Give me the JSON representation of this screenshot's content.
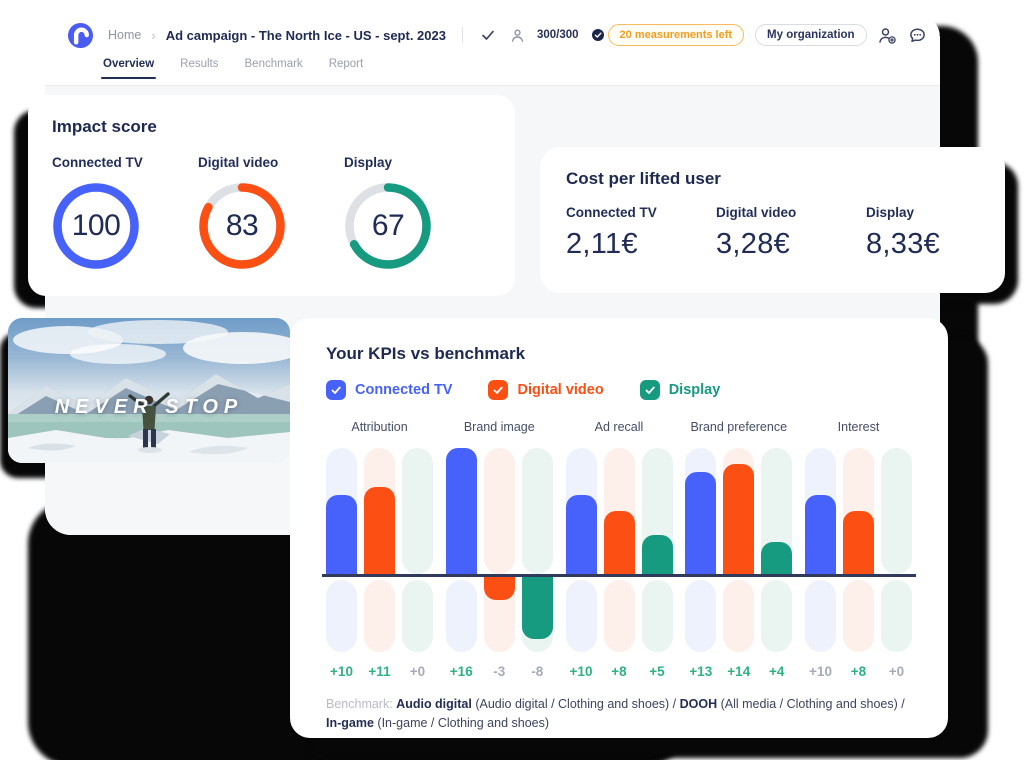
{
  "header": {
    "breadcrumb": {
      "home": "Home",
      "separator": "›",
      "title": "Ad campaign - The North Ice - US - sept. 2023"
    },
    "respondents": "300/300",
    "measurements_badge": "20 measurements left",
    "organization_button": "My organization",
    "icons": [
      "check-icon",
      "person-icon",
      "verified-badge-icon",
      "add-user-icon",
      "chat-icon",
      "eye-icon",
      "download-icon",
      "bell-icon",
      "help-icon",
      "account-icon"
    ]
  },
  "tabs": [
    {
      "label": "Overview",
      "active": true
    },
    {
      "label": "Results",
      "active": false
    },
    {
      "label": "Benchmark",
      "active": false
    },
    {
      "label": "Report",
      "active": false
    }
  ],
  "impact": {
    "title": "Impact score",
    "gauges": [
      {
        "label": "Connected TV",
        "value": 100,
        "color": "#4761fb"
      },
      {
        "label": "Digital video",
        "value": 83,
        "color": "#fb4f14"
      },
      {
        "label": "Display",
        "value": 67,
        "color": "#169a80"
      }
    ],
    "track_color": "#dde0e5"
  },
  "cost": {
    "title": "Cost per lifted user",
    "items": [
      {
        "label": "Connected TV",
        "value": "2,11€"
      },
      {
        "label": "Digital video",
        "value": "3,28€"
      },
      {
        "label": "Display",
        "value": "8,33€"
      }
    ]
  },
  "hero": {
    "caption": "NEVER STOP"
  },
  "kpi": {
    "title": "Your KPIs vs benchmark",
    "legend": [
      {
        "label": "Connected TV",
        "color": "#4761fb"
      },
      {
        "label": "Digital video",
        "color": "#fb4f14"
      },
      {
        "label": "Display",
        "color": "#169a80"
      }
    ],
    "benchmark": {
      "prefix": "Benchmark:",
      "segments": [
        {
          "text": "Audio digital",
          "bold": true
        },
        {
          "text": " (Audio digital / Clothing and shoes) /  ",
          "bold": false
        },
        {
          "text": "DOOH",
          "bold": true
        },
        {
          "text": " (All media / Clothing and shoes) /",
          "bold": false
        },
        {
          "text": "In-game",
          "bold": true,
          "break_before": true
        },
        {
          "text": " (In-game / Clothing and shoes)",
          "bold": false
        }
      ]
    }
  },
  "chart_data": {
    "type": "bar",
    "title": "Your KPIs vs benchmark",
    "categories": [
      "Attribution",
      "Brand image",
      "Ad recall",
      "Brand preference",
      "Interest"
    ],
    "series": [
      {
        "name": "Connected TV",
        "color": "#4761fb",
        "track_color": "#eef2fc",
        "values": [
          10,
          16,
          10,
          13,
          10
        ]
      },
      {
        "name": "Digital video",
        "color": "#fb4f14",
        "track_color": "#fdefe9",
        "values": [
          11,
          -3,
          8,
          14,
          8
        ]
      },
      {
        "name": "Display",
        "color": "#169a80",
        "track_color": "#eaf4f1",
        "values": [
          0,
          -8,
          5,
          4,
          0
        ]
      }
    ],
    "value_labels": [
      [
        "+10",
        "+11",
        "+0"
      ],
      [
        "+16",
        "-3",
        "-8"
      ],
      [
        "+10",
        "+8",
        "+5"
      ],
      [
        "+13",
        "+14",
        "+4"
      ],
      [
        "+10",
        "+8",
        "+0"
      ]
    ],
    "muted_labels": [
      [
        false,
        false,
        true
      ],
      [
        false,
        true,
        true
      ],
      [
        false,
        false,
        false
      ],
      [
        false,
        false,
        false
      ],
      [
        true,
        false,
        true
      ]
    ],
    "ylim": [
      -9,
      16
    ],
    "baseline": 0,
    "legend_position": "top",
    "grid": false
  },
  "colors": {
    "navy": "#1f2b53",
    "muted_gray": "#9aa0ad",
    "positive_green": "#2fb183",
    "muted_value": "#a6abb5",
    "badge_orange": "#f59c1b",
    "baseline": "#2f3a5d"
  }
}
